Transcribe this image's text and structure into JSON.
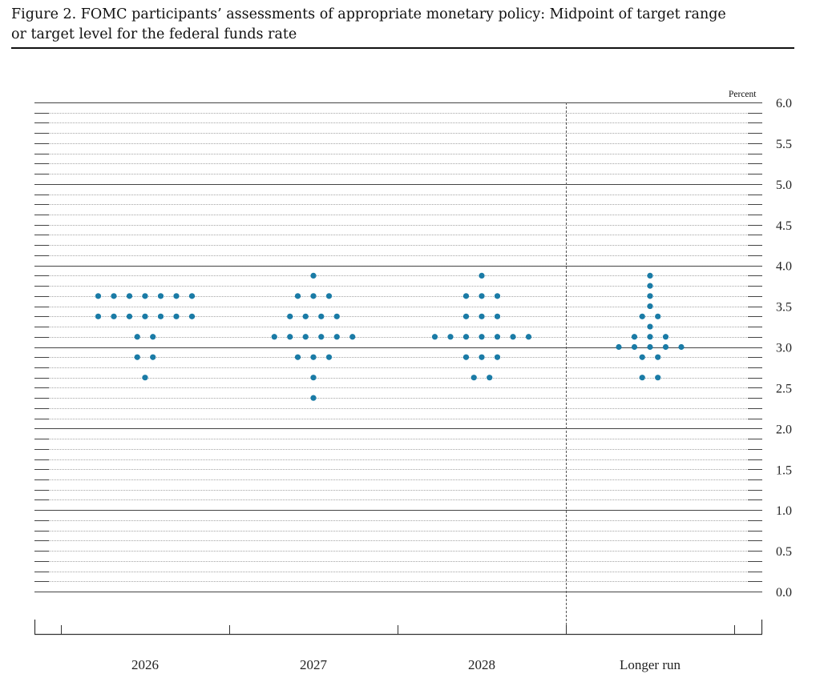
{
  "figure": {
    "title_line1": "Figure 2. FOMC participants’ assessments of appropriate monetary policy: Midpoint of target range",
    "title_line2": "or target level for the federal funds rate",
    "unit_label": "Percent"
  },
  "chart_data": {
    "type": "scatter",
    "subtype": "dot-plot",
    "title": "Figure 2. FOMC participants’ assessments of appropriate monetary policy: Midpoint of target range or target level for the federal funds rate",
    "ylabel": "Percent",
    "ylim": [
      0,
      6
    ],
    "yticks": [
      "6.0",
      "5.5",
      "5.0",
      "4.5",
      "4.0",
      "3.5",
      "3.0",
      "2.5",
      "2.0",
      "1.5",
      "1.0",
      "0.5",
      "0.0"
    ],
    "categories": [
      "2026",
      "2027",
      "2028",
      "Longer run"
    ],
    "dot_color": "#1a7ba6",
    "grid": true,
    "separator_before": "Longer run",
    "columns": [
      {
        "category": "2026",
        "levels": [
          {
            "rate": 3.625,
            "count": 7
          },
          {
            "rate": 3.375,
            "count": 7
          },
          {
            "rate": 3.125,
            "count": 2
          },
          {
            "rate": 2.875,
            "count": 2
          },
          {
            "rate": 2.625,
            "count": 1
          }
        ]
      },
      {
        "category": "2027",
        "levels": [
          {
            "rate": 3.875,
            "count": 1
          },
          {
            "rate": 3.625,
            "count": 3
          },
          {
            "rate": 3.375,
            "count": 4
          },
          {
            "rate": 3.125,
            "count": 6
          },
          {
            "rate": 2.875,
            "count": 3
          },
          {
            "rate": 2.625,
            "count": 1
          },
          {
            "rate": 2.375,
            "count": 1
          }
        ]
      },
      {
        "category": "2028",
        "levels": [
          {
            "rate": 3.875,
            "count": 1
          },
          {
            "rate": 3.625,
            "count": 3
          },
          {
            "rate": 3.375,
            "count": 3
          },
          {
            "rate": 3.125,
            "count": 7
          },
          {
            "rate": 2.875,
            "count": 3
          },
          {
            "rate": 2.625,
            "count": 2
          }
        ]
      },
      {
        "category": "Longer run",
        "levels": [
          {
            "rate": 3.875,
            "count": 1
          },
          {
            "rate": 3.75,
            "count": 1
          },
          {
            "rate": 3.625,
            "count": 1
          },
          {
            "rate": 3.5,
            "count": 1
          },
          {
            "rate": 3.375,
            "count": 2
          },
          {
            "rate": 3.25,
            "count": 1
          },
          {
            "rate": 3.125,
            "count": 3
          },
          {
            "rate": 3.0,
            "count": 5
          },
          {
            "rate": 2.875,
            "count": 2
          },
          {
            "rate": 2.625,
            "count": 2
          }
        ]
      }
    ]
  }
}
